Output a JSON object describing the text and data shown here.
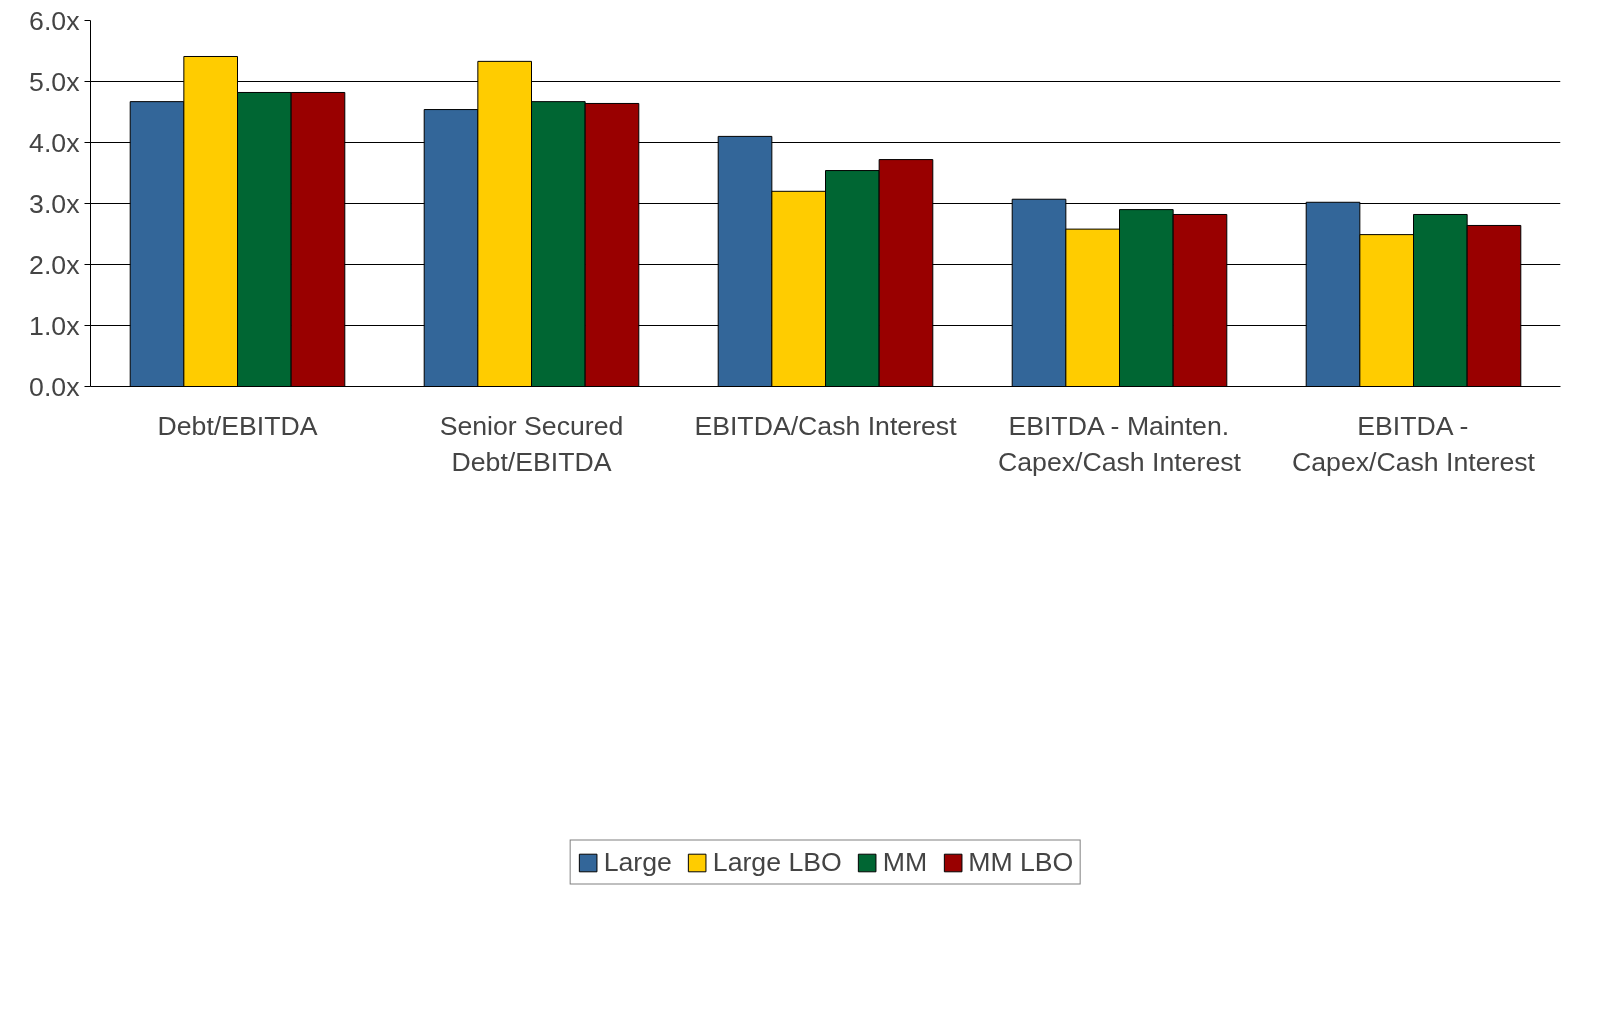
{
  "chart_data": {
    "type": "bar",
    "categories": [
      "Debt/EBITDA",
      "Senior Secured\nDebt/EBITDA",
      "EBITDA/Cash Interest",
      "EBITDA - Mainten.\nCapex/Cash Interest",
      "EBITDA -\nCapex/Cash Interest"
    ],
    "series": [
      {
        "name": "Large",
        "color": "#336699",
        "values": [
          4.67,
          4.54,
          4.1,
          3.07,
          3.02
        ]
      },
      {
        "name": "Large LBO",
        "color": "#ffcc00",
        "values": [
          5.41,
          5.33,
          3.2,
          2.58,
          2.49
        ]
      },
      {
        "name": "MM",
        "color": "#006633",
        "values": [
          4.82,
          4.67,
          3.54,
          2.9,
          2.82
        ]
      },
      {
        "name": "MM LBO",
        "color": "#990000",
        "values": [
          4.82,
          4.64,
          3.72,
          2.82,
          2.64
        ]
      }
    ],
    "ylim": [
      0,
      6
    ],
    "yticks": [
      {
        "value": 0,
        "label": "0.0x"
      },
      {
        "value": 1,
        "label": "1.0x"
      },
      {
        "value": 2,
        "label": "2.0x"
      },
      {
        "value": 3,
        "label": "3.0x"
      },
      {
        "value": 4,
        "label": "4.0x"
      },
      {
        "value": 5,
        "label": "5.0x"
      },
      {
        "value": 6,
        "label": "6.0x"
      }
    ],
    "grid": "y",
    "legend": "bottom"
  }
}
